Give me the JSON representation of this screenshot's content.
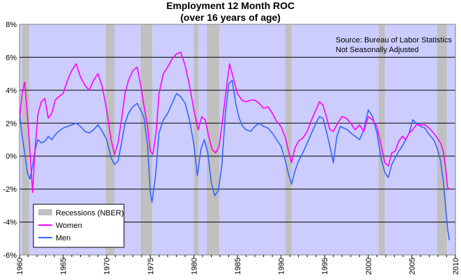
{
  "chart_data": {
    "type": "line",
    "title": "Employment 12 Month ROC",
    "subtitle": "(over 16 years of age)",
    "annotation": [
      "Source: Bureau of Labor Statistics",
      "Not Seasonally Adjusted"
    ],
    "xlim": [
      1960,
      2010
    ],
    "ylim": [
      -6,
      8
    ],
    "x_ticks": [
      "1960",
      "1965",
      "1970",
      "1975",
      "1980",
      "1985",
      "1990",
      "1995",
      "2000",
      "2005",
      "2010"
    ],
    "y_ticks": [
      "-6%",
      "-4%",
      "-2%",
      "0%",
      "2%",
      "4%",
      "6%",
      "8%"
    ],
    "grid": true,
    "plot_background": "#ccccff",
    "legend": {
      "position": "bottom-left",
      "entries": [
        {
          "label": "Recessions (NBER)",
          "color": "#c0c0c0",
          "kind": "bar"
        },
        {
          "label": "Women",
          "color": "#ff00ff",
          "kind": "line"
        },
        {
          "label": "Men",
          "color": "#3366ff",
          "kind": "line"
        }
      ]
    },
    "recessions": [
      [
        1960.3,
        1961.1
      ],
      [
        1969.9,
        1970.9
      ],
      [
        1973.9,
        1975.2
      ],
      [
        1980.0,
        1980.5
      ],
      [
        1981.5,
        1982.9
      ],
      [
        1990.5,
        1991.2
      ],
      [
        2001.2,
        2001.9
      ],
      [
        2007.9,
        2009.0
      ]
    ],
    "series": [
      {
        "name": "Women",
        "color": "#ff00ff",
        "points": [
          [
            1960.0,
            2.2
          ],
          [
            1960.3,
            3.8
          ],
          [
            1960.6,
            4.5
          ],
          [
            1960.9,
            2.5
          ],
          [
            1961.2,
            0.3
          ],
          [
            1961.5,
            -2.2
          ],
          [
            1961.8,
            0.5
          ],
          [
            1962.1,
            2.5
          ],
          [
            1962.5,
            3.3
          ],
          [
            1962.9,
            3.5
          ],
          [
            1963.3,
            2.3
          ],
          [
            1963.7,
            2.6
          ],
          [
            1964.1,
            3.4
          ],
          [
            1964.5,
            3.6
          ],
          [
            1965.0,
            3.8
          ],
          [
            1965.5,
            4.6
          ],
          [
            1966.0,
            5.2
          ],
          [
            1966.5,
            5.6
          ],
          [
            1967.0,
            4.8
          ],
          [
            1967.5,
            4.3
          ],
          [
            1968.0,
            4.0
          ],
          [
            1968.5,
            4.6
          ],
          [
            1969.0,
            5.0
          ],
          [
            1969.5,
            4.2
          ],
          [
            1970.0,
            2.8
          ],
          [
            1970.5,
            1.0
          ],
          [
            1970.9,
            0.1
          ],
          [
            1971.3,
            0.8
          ],
          [
            1971.7,
            2.2
          ],
          [
            1972.1,
            3.8
          ],
          [
            1972.5,
            4.6
          ],
          [
            1973.0,
            5.2
          ],
          [
            1973.5,
            5.4
          ],
          [
            1973.9,
            4.3
          ],
          [
            1974.3,
            3.0
          ],
          [
            1974.7,
            1.8
          ],
          [
            1975.0,
            0.3
          ],
          [
            1975.3,
            0.1
          ],
          [
            1975.7,
            1.6
          ],
          [
            1976.0,
            3.8
          ],
          [
            1976.5,
            5.0
          ],
          [
            1977.0,
            5.4
          ],
          [
            1977.5,
            5.9
          ],
          [
            1978.0,
            6.2
          ],
          [
            1978.5,
            6.3
          ],
          [
            1979.0,
            5.5
          ],
          [
            1979.5,
            4.3
          ],
          [
            1980.0,
            2.8
          ],
          [
            1980.5,
            1.6
          ],
          [
            1980.9,
            2.4
          ],
          [
            1981.3,
            2.2
          ],
          [
            1981.7,
            1.2
          ],
          [
            1982.1,
            0.4
          ],
          [
            1982.5,
            0.2
          ],
          [
            1982.9,
            0.6
          ],
          [
            1983.3,
            2.2
          ],
          [
            1983.7,
            4.0
          ],
          [
            1984.1,
            5.6
          ],
          [
            1984.5,
            4.8
          ],
          [
            1985.0,
            3.8
          ],
          [
            1985.5,
            3.4
          ],
          [
            1986.0,
            3.3
          ],
          [
            1986.5,
            3.4
          ],
          [
            1987.0,
            3.4
          ],
          [
            1987.5,
            3.2
          ],
          [
            1988.0,
            2.9
          ],
          [
            1988.5,
            3.0
          ],
          [
            1989.0,
            2.6
          ],
          [
            1989.5,
            2.1
          ],
          [
            1990.0,
            1.8
          ],
          [
            1990.5,
            1.1
          ],
          [
            1990.9,
            0.2
          ],
          [
            1991.2,
            -0.4
          ],
          [
            1991.6,
            0.5
          ],
          [
            1992.0,
            0.9
          ],
          [
            1992.5,
            1.1
          ],
          [
            1993.0,
            1.5
          ],
          [
            1993.5,
            2.2
          ],
          [
            1994.0,
            2.8
          ],
          [
            1994.4,
            3.3
          ],
          [
            1994.8,
            3.1
          ],
          [
            1995.2,
            2.4
          ],
          [
            1995.6,
            1.6
          ],
          [
            1996.0,
            1.5
          ],
          [
            1996.5,
            2.0
          ],
          [
            1997.0,
            2.4
          ],
          [
            1997.5,
            2.3
          ],
          [
            1998.0,
            2.0
          ],
          [
            1998.5,
            1.6
          ],
          [
            1999.0,
            1.9
          ],
          [
            1999.5,
            1.5
          ],
          [
            2000.0,
            2.4
          ],
          [
            2000.5,
            2.2
          ],
          [
            2001.0,
            1.8
          ],
          [
            2001.5,
            0.6
          ],
          [
            2001.9,
            -0.4
          ],
          [
            2002.3,
            -0.6
          ],
          [
            2002.7,
            0.2
          ],
          [
            2003.1,
            0.3
          ],
          [
            2003.5,
            0.9
          ],
          [
            2003.9,
            1.2
          ],
          [
            2004.3,
            1.0
          ],
          [
            2004.7,
            1.4
          ],
          [
            2005.1,
            1.6
          ],
          [
            2005.5,
            1.9
          ],
          [
            2006.0,
            1.9
          ],
          [
            2006.5,
            1.9
          ],
          [
            2007.0,
            1.7
          ],
          [
            2007.5,
            1.4
          ],
          [
            2007.9,
            1.1
          ],
          [
            2008.3,
            0.8
          ],
          [
            2008.6,
            0.3
          ],
          [
            2008.9,
            -0.8
          ],
          [
            2009.1,
            -1.9
          ],
          [
            2009.3,
            -2.0
          ]
        ]
      },
      {
        "name": "Men",
        "color": "#3366ff",
        "points": [
          [
            1960.0,
            2.7
          ],
          [
            1960.3,
            1.2
          ],
          [
            1960.6,
            0.2
          ],
          [
            1960.9,
            -1.0
          ],
          [
            1961.2,
            -1.4
          ],
          [
            1961.5,
            -0.6
          ],
          [
            1961.8,
            0.4
          ],
          [
            1962.1,
            1.0
          ],
          [
            1962.5,
            0.8
          ],
          [
            1962.9,
            0.9
          ],
          [
            1963.3,
            1.2
          ],
          [
            1963.7,
            1.0
          ],
          [
            1964.1,
            1.3
          ],
          [
            1964.5,
            1.5
          ],
          [
            1965.0,
            1.7
          ],
          [
            1965.5,
            1.8
          ],
          [
            1966.0,
            1.9
          ],
          [
            1966.5,
            2.0
          ],
          [
            1967.0,
            1.8
          ],
          [
            1967.5,
            1.5
          ],
          [
            1968.0,
            1.4
          ],
          [
            1968.5,
            1.6
          ],
          [
            1969.0,
            1.9
          ],
          [
            1969.5,
            1.5
          ],
          [
            1970.0,
            1.0
          ],
          [
            1970.5,
            -0.1
          ],
          [
            1970.9,
            -0.5
          ],
          [
            1971.3,
            -0.3
          ],
          [
            1971.7,
            0.8
          ],
          [
            1972.1,
            2.0
          ],
          [
            1972.5,
            2.6
          ],
          [
            1973.0,
            3.0
          ],
          [
            1973.5,
            3.2
          ],
          [
            1973.9,
            2.8
          ],
          [
            1974.3,
            2.3
          ],
          [
            1974.7,
            0.6
          ],
          [
            1975.0,
            -2.2
          ],
          [
            1975.2,
            -2.8
          ],
          [
            1975.6,
            -1.2
          ],
          [
            1976.0,
            1.4
          ],
          [
            1976.5,
            2.2
          ],
          [
            1977.0,
            2.6
          ],
          [
            1977.5,
            3.2
          ],
          [
            1978.0,
            3.8
          ],
          [
            1978.5,
            3.6
          ],
          [
            1979.0,
            3.2
          ],
          [
            1979.5,
            2.2
          ],
          [
            1980.0,
            0.7
          ],
          [
            1980.4,
            -1.2
          ],
          [
            1980.8,
            0.4
          ],
          [
            1981.2,
            1.0
          ],
          [
            1981.6,
            0.2
          ],
          [
            1982.0,
            -1.6
          ],
          [
            1982.4,
            -2.4
          ],
          [
            1982.8,
            -2.1
          ],
          [
            1983.2,
            -0.6
          ],
          [
            1983.6,
            2.5
          ],
          [
            1984.0,
            4.4
          ],
          [
            1984.4,
            4.6
          ],
          [
            1984.8,
            3.2
          ],
          [
            1985.2,
            2.3
          ],
          [
            1985.6,
            1.8
          ],
          [
            1986.0,
            1.6
          ],
          [
            1986.5,
            1.5
          ],
          [
            1987.0,
            1.8
          ],
          [
            1987.5,
            2.0
          ],
          [
            1988.0,
            1.8
          ],
          [
            1988.5,
            1.7
          ],
          [
            1989.0,
            1.4
          ],
          [
            1989.5,
            1.0
          ],
          [
            1990.0,
            0.6
          ],
          [
            1990.5,
            -0.3
          ],
          [
            1990.9,
            -1.2
          ],
          [
            1991.2,
            -1.7
          ],
          [
            1991.6,
            -0.9
          ],
          [
            1992.0,
            -0.3
          ],
          [
            1992.5,
            0.2
          ],
          [
            1993.0,
            0.8
          ],
          [
            1993.5,
            1.4
          ],
          [
            1994.0,
            2.0
          ],
          [
            1994.4,
            2.4
          ],
          [
            1994.8,
            2.3
          ],
          [
            1995.2,
            1.5
          ],
          [
            1995.6,
            0.6
          ],
          [
            1996.0,
            -0.4
          ],
          [
            1996.4,
            1.2
          ],
          [
            1996.8,
            1.8
          ],
          [
            1997.2,
            1.7
          ],
          [
            1997.6,
            1.6
          ],
          [
            1998.0,
            1.4
          ],
          [
            1998.5,
            1.2
          ],
          [
            1999.0,
            1.0
          ],
          [
            1999.5,
            1.6
          ],
          [
            2000.0,
            2.8
          ],
          [
            2000.5,
            2.4
          ],
          [
            2001.0,
            1.4
          ],
          [
            2001.5,
            -0.2
          ],
          [
            2001.9,
            -1.0
          ],
          [
            2002.3,
            -1.3
          ],
          [
            2002.7,
            -0.5
          ],
          [
            2003.1,
            -0.1
          ],
          [
            2003.5,
            0.3
          ],
          [
            2003.9,
            0.6
          ],
          [
            2004.3,
            1.0
          ],
          [
            2004.7,
            1.4
          ],
          [
            2005.1,
            2.2
          ],
          [
            2005.5,
            2.0
          ],
          [
            2006.0,
            1.8
          ],
          [
            2006.5,
            1.7
          ],
          [
            2007.0,
            1.3
          ],
          [
            2007.5,
            1.0
          ],
          [
            2007.9,
            0.5
          ],
          [
            2008.3,
            -0.3
          ],
          [
            2008.6,
            -1.5
          ],
          [
            2008.9,
            -3.2
          ],
          [
            2009.1,
            -4.4
          ],
          [
            2009.3,
            -5.1
          ]
        ]
      }
    ]
  }
}
